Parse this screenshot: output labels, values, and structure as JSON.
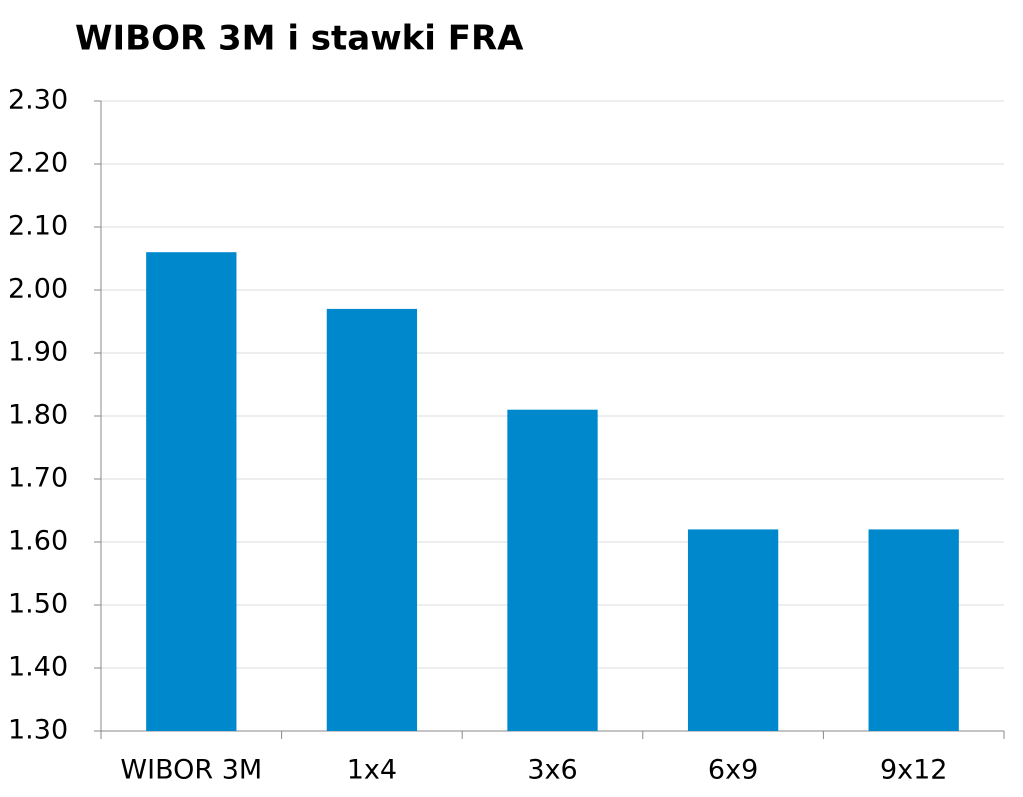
{
  "chart_data": {
    "type": "bar",
    "title": "WIBOR 3M i stawki FRA",
    "categories": [
      "WIBOR 3M",
      "1x4",
      "3x6",
      "6x9",
      "9x12"
    ],
    "values": [
      2.06,
      1.97,
      1.81,
      1.62,
      1.62
    ],
    "color": "#0088cc",
    "ylim": [
      1.3,
      2.3
    ],
    "yticks": [
      {
        "value": 1.3,
        "label": "1.30"
      },
      {
        "value": 1.4,
        "label": "1.40"
      },
      {
        "value": 1.5,
        "label": "1.50"
      },
      {
        "value": 1.6,
        "label": "1.60"
      },
      {
        "value": 1.7,
        "label": "1.70"
      },
      {
        "value": 1.8,
        "label": "1.80"
      },
      {
        "value": 1.9,
        "label": "1.90"
      },
      {
        "value": 2.0,
        "label": "2.00"
      },
      {
        "value": 2.1,
        "label": "2.10"
      },
      {
        "value": 2.2,
        "label": "2.20"
      },
      {
        "value": 2.3,
        "label": "2.30"
      }
    ],
    "grid": true
  }
}
